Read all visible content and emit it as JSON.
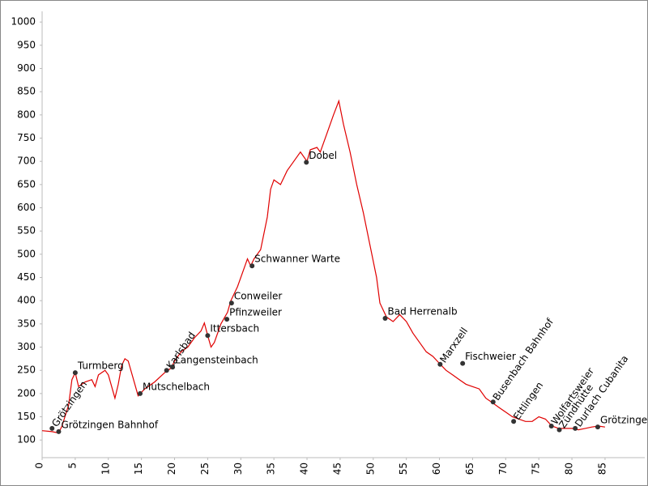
{
  "chart_data": {
    "type": "line",
    "x": [
      0,
      1.5,
      2.5,
      3,
      4,
      4.5,
      5,
      5.5,
      6.5,
      7.5,
      8,
      8.5,
      9.5,
      10,
      11,
      11.5,
      12,
      12.5,
      13,
      14,
      14.5,
      15.5,
      17,
      18.5,
      19.5,
      20,
      21,
      22,
      23,
      24,
      24.5,
      25,
      25.5,
      26,
      27,
      28,
      28.5,
      29.5,
      30.5,
      31,
      31.5,
      32,
      33,
      34,
      34.5,
      35,
      36,
      37,
      38,
      39,
      40,
      40.5,
      41.5,
      42,
      43,
      44,
      44.8,
      45.5,
      46.5,
      47.5,
      48.5,
      49.5,
      50.5,
      51,
      52,
      53,
      54,
      55,
      56,
      57,
      58,
      59,
      60,
      61,
      62,
      63,
      64,
      65,
      66,
      67,
      68,
      69,
      70,
      71,
      72,
      73,
      74,
      75,
      76,
      77,
      78,
      79,
      80,
      81,
      82,
      83,
      84,
      85
    ],
    "series": [
      {
        "color": "#e00000",
        "values": [
          120,
          118,
          115,
          130,
          175,
          230,
          245,
          215,
          225,
          230,
          215,
          240,
          250,
          240,
          190,
          220,
          260,
          275,
          270,
          220,
          195,
          210,
          225,
          245,
          255,
          270,
          290,
          300,
          320,
          335,
          352,
          325,
          300,
          310,
          350,
          375,
          400,
          430,
          470,
          490,
          475,
          490,
          510,
          580,
          640,
          660,
          650,
          680,
          700,
          720,
          700,
          725,
          730,
          720,
          760,
          800,
          830,
          780,
          720,
          650,
          590,
          520,
          450,
          395,
          365,
          355,
          370,
          355,
          330,
          310,
          290,
          280,
          265,
          250,
          240,
          230,
          220,
          215,
          210,
          190,
          180,
          170,
          160,
          150,
          145,
          140,
          140,
          150,
          145,
          130,
          125,
          125,
          125,
          122,
          125,
          128,
          130,
          128
        ]
      }
    ],
    "points": {
      "names": [
        "Grötzingen",
        "Grötzingen Bahnhof",
        "Turmberg",
        "Mutschelbach",
        "Karlsbad",
        "Langensteinbach",
        "Ittersbach",
        "Pfinzweiler",
        "Conweiler",
        "Schwanner Warte",
        "Dobel",
        "Bad Herrenalb",
        "Marxzell",
        "Fischweier",
        "Busenbach Bahnhof",
        "Ettlingen",
        "Wolfartsweier",
        "Zündhütte",
        "Durlach Cubanita",
        "Grötzingen"
      ],
      "x": [
        1.5,
        2.5,
        5,
        14.8,
        18.8,
        19.7,
        25,
        27.9,
        28.6,
        31.7,
        39.9,
        51.8,
        60.1,
        63.5,
        68.1,
        71.2,
        76.9,
        78.1,
        80.5,
        83.9
      ],
      "values": [
        125,
        118,
        245,
        200,
        250,
        257,
        325,
        360,
        395,
        475,
        698,
        362,
        263,
        265,
        182,
        140,
        130,
        122,
        125,
        128
      ],
      "color": "#333333"
    },
    "xlim": [
      0,
      91
    ],
    "ylim": [
      62,
      1023
    ],
    "xticks": [
      0,
      5,
      10,
      15,
      20,
      25,
      30,
      35,
      40,
      45,
      50,
      55,
      60,
      65,
      70,
      75,
      80,
      85
    ],
    "yticks": [
      100,
      150,
      200,
      250,
      300,
      350,
      400,
      450,
      500,
      550,
      600,
      650,
      700,
      750,
      800,
      850,
      900,
      950,
      1000
    ]
  }
}
